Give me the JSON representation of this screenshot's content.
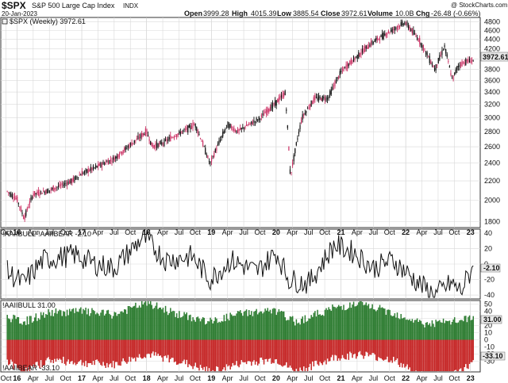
{
  "header": {
    "symbol": "$SPX",
    "name": "S&P 500 Large Cap Index",
    "exchange": "INDX",
    "date": "20-Jan-2023",
    "watermark": "@ StockCharts.com",
    "quote": {
      "open_label": "Open",
      "open": "3999.28",
      "high_label": "High",
      "high": "4015.39",
      "low_label": "Low",
      "low": "3885.54",
      "close_label": "Close",
      "close": "3972.61",
      "volume_label": "Volume",
      "volume": "10.0B",
      "chg_label": "Chg",
      "chg": "-26.48 (-0.66%)"
    }
  },
  "colors": {
    "up_candle": "#111111",
    "down_candle": "#cc3366",
    "sentiment_line": "#111111",
    "bull_bars": "#2e7d32",
    "bear_bars": "#c62828",
    "grid": "#d9d9d9",
    "last_value_box": "#e8e8e8"
  },
  "chart_data": [
    {
      "type": "line",
      "title": "$SPX (Weekly) 3972.61",
      "last_value": "3972.61",
      "y_scale": "log",
      "ylim": [
        1750,
        4900
      ],
      "y_ticks": [
        "1800",
        "2000",
        "2200",
        "2400",
        "2600",
        "2800",
        "3000",
        "3200",
        "3400",
        "3600",
        "3800",
        "4000",
        "4200",
        "4400",
        "4600",
        "4800"
      ],
      "x": [
        2015.85,
        2016.0,
        2016.11,
        2016.25,
        2016.5,
        2016.85,
        2017.0,
        2017.5,
        2018.0,
        2018.09,
        2018.25,
        2018.75,
        2018.98,
        2019.25,
        2019.4,
        2019.75,
        2020.0,
        2020.14,
        2020.22,
        2020.4,
        2020.6,
        2020.8,
        2021.0,
        2021.5,
        2021.99,
        2022.2,
        2022.45,
        2022.6,
        2022.72,
        2022.8,
        2022.92,
        2023.05
      ],
      "values": [
        2090,
        2010,
        1830,
        2060,
        2100,
        2200,
        2280,
        2450,
        2800,
        2600,
        2650,
        2900,
        2390,
        2900,
        2800,
        2990,
        3230,
        3380,
        2240,
        3000,
        3300,
        3300,
        3750,
        4350,
        4780,
        4400,
        3800,
        4250,
        3600,
        3850,
        3950,
        3972.61
      ]
    },
    {
      "type": "line",
      "title": "!AAIIBULL-!AAIIBEAR -2.10",
      "series_name": "!AAIIBULL-!AAIIBEAR",
      "last_value": "-2.10",
      "ylim": [
        -45,
        45
      ],
      "y_ticks": [
        "-40",
        "-20",
        "0",
        "20",
        "40"
      ],
      "x": [
        2015.85,
        2016.1,
        2016.4,
        2016.9,
        2017.2,
        2017.5,
        2017.95,
        2018.3,
        2018.7,
        2018.98,
        2019.3,
        2019.7,
        2020.0,
        2020.2,
        2020.5,
        2020.9,
        2021.2,
        2021.5,
        2021.8,
        2022.2,
        2022.45,
        2022.7,
        2022.85,
        2023.05
      ],
      "values": [
        -10,
        -25,
        5,
        12,
        0,
        -5,
        35,
        5,
        10,
        -20,
        5,
        -10,
        15,
        -20,
        -25,
        25,
        15,
        -5,
        5,
        -25,
        -40,
        -25,
        -35,
        -2.1
      ]
    },
    {
      "type": "bar",
      "title": "!AAIIBULL 31.00",
      "series_name": "!AAIIBULL",
      "last_value": "31.00",
      "second_title": "!AAIIBEAR -33.10",
      "second_series_name": "!AAIIBEAR",
      "second_last_value": "-33.10",
      "ylim": [
        -45,
        55
      ],
      "y_ticks": [
        "-30",
        "-20",
        "-10",
        "0",
        "10",
        "20",
        "30",
        "40",
        "50"
      ],
      "bull_x": [
        2015.85,
        2016.1,
        2016.5,
        2017.0,
        2017.5,
        2018.0,
        2018.5,
        2019.0,
        2019.5,
        2020.0,
        2020.3,
        2020.9,
        2021.3,
        2021.8,
        2022.3,
        2022.7,
        2023.05
      ],
      "bull_values": [
        32,
        25,
        38,
        40,
        35,
        52,
        35,
        25,
        38,
        40,
        25,
        45,
        50,
        38,
        22,
        25,
        31
      ],
      "bear_x": [
        2015.85,
        2016.1,
        2016.5,
        2017.0,
        2017.5,
        2018.0,
        2018.5,
        2019.0,
        2019.5,
        2020.0,
        2020.3,
        2020.9,
        2021.3,
        2021.8,
        2022.3,
        2022.7,
        2023.05
      ],
      "bear_values": [
        -30,
        -45,
        -28,
        -32,
        -35,
        -20,
        -30,
        -45,
        -32,
        -28,
        -45,
        -25,
        -20,
        -28,
        -55,
        -50,
        -33.1
      ]
    }
  ],
  "x_axis": {
    "xlim": [
      2015.75,
      2023.15
    ],
    "ticks": [
      {
        "x": 2015.83,
        "label": "Oct"
      },
      {
        "x": 2016.0,
        "label": "16",
        "bold": true
      },
      {
        "x": 2016.25,
        "label": "Apr"
      },
      {
        "x": 2016.5,
        "label": "Jul"
      },
      {
        "x": 2016.75,
        "label": "Oct"
      },
      {
        "x": 2017.0,
        "label": "17",
        "bold": true
      },
      {
        "x": 2017.25,
        "label": "Apr"
      },
      {
        "x": 2017.5,
        "label": "Jul"
      },
      {
        "x": 2017.75,
        "label": "Oct"
      },
      {
        "x": 2018.0,
        "label": "18",
        "bold": true
      },
      {
        "x": 2018.25,
        "label": "Apr"
      },
      {
        "x": 2018.5,
        "label": "Jul"
      },
      {
        "x": 2018.75,
        "label": "Oct"
      },
      {
        "x": 2019.0,
        "label": "19",
        "bold": true
      },
      {
        "x": 2019.25,
        "label": "Apr"
      },
      {
        "x": 2019.5,
        "label": "Jul"
      },
      {
        "x": 2019.75,
        "label": "Oct"
      },
      {
        "x": 2020.0,
        "label": "20",
        "bold": true
      },
      {
        "x": 2020.25,
        "label": "Apr"
      },
      {
        "x": 2020.5,
        "label": "Jul"
      },
      {
        "x": 2020.75,
        "label": "Oct"
      },
      {
        "x": 2021.0,
        "label": "21",
        "bold": true
      },
      {
        "x": 2021.25,
        "label": "Apr"
      },
      {
        "x": 2021.5,
        "label": "Jul"
      },
      {
        "x": 2021.75,
        "label": "Oct"
      },
      {
        "x": 2022.0,
        "label": "22",
        "bold": true
      },
      {
        "x": 2022.25,
        "label": "Apr"
      },
      {
        "x": 2022.5,
        "label": "Jul"
      },
      {
        "x": 2022.75,
        "label": "Oct"
      },
      {
        "x": 2023.0,
        "label": "23",
        "bold": true
      }
    ]
  }
}
